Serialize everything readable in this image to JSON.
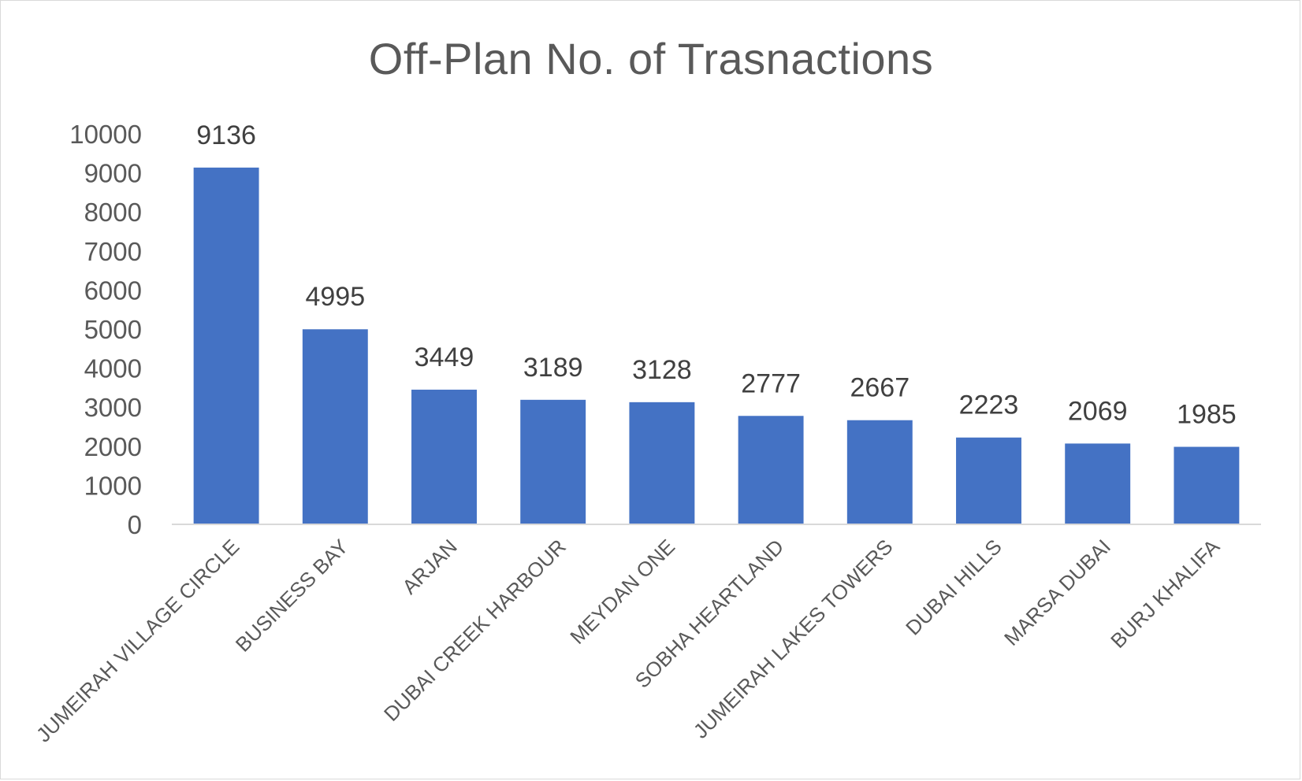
{
  "chart_data": {
    "type": "bar",
    "title": "Off-Plan No. of Trasnactions",
    "xlabel": "",
    "ylabel": "",
    "categories": [
      "JUMEIRAH VILLAGE CIRCLE",
      "BUSINESS BAY",
      "ARJAN",
      "DUBAI CREEK HARBOUR",
      "MEYDAN ONE",
      "SOBHA HEARTLAND",
      "JUMEIRAH LAKES TOWERS",
      "DUBAI HILLS",
      "MARSA DUBAI",
      "BURJ KHALIFA"
    ],
    "values": [
      9136,
      4995,
      3449,
      3189,
      3128,
      2777,
      2667,
      2223,
      2069,
      1985
    ],
    "data_labels": [
      "9136",
      "4995",
      "3449",
      "3189",
      "3128",
      "2777",
      "2667",
      "2223",
      "2069",
      "1985"
    ],
    "ylim": [
      0,
      10000
    ],
    "yticks": [
      0,
      1000,
      2000,
      3000,
      4000,
      5000,
      6000,
      7000,
      8000,
      9000,
      10000
    ],
    "ytick_labels": [
      "0",
      "1000",
      "2000",
      "3000",
      "4000",
      "5000",
      "6000",
      "7000",
      "8000",
      "9000",
      "10000"
    ],
    "grid": false,
    "legend": "none",
    "colors": {
      "bar": "#4472c4",
      "axis": "#d9d9d9",
      "text": "#595959",
      "data_label": "#404040"
    }
  }
}
